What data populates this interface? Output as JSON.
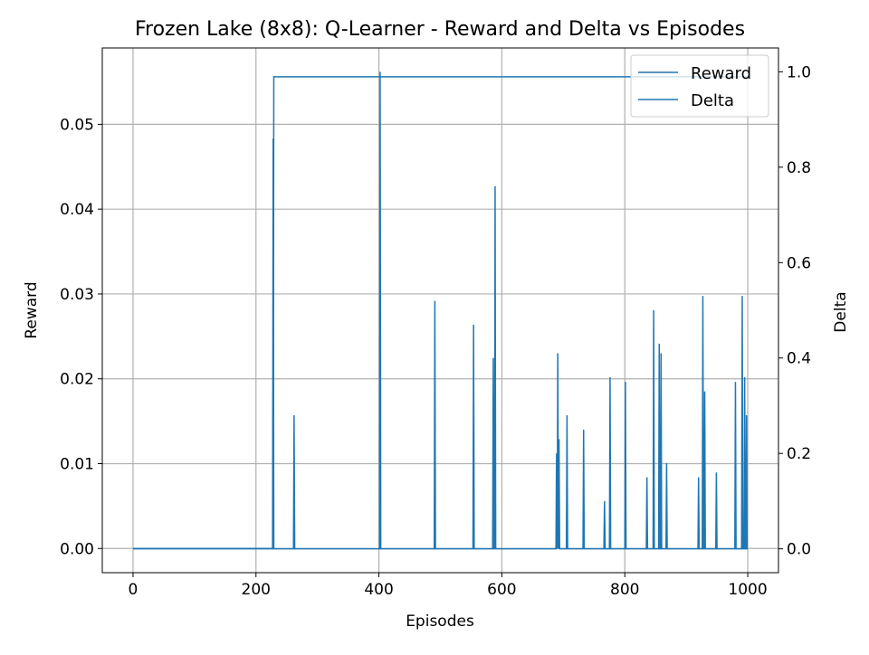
{
  "chart_data": {
    "type": "line",
    "title": "Frozen Lake (8x8): Q-Learner - Reward and Delta vs Episodes",
    "xlabel": "Episodes",
    "ylabel": "Reward",
    "y2label": "Delta",
    "xlim": [
      -50,
      1050
    ],
    "ylim": [
      -0.00285,
      0.059
    ],
    "y2lim": [
      -0.05,
      1.05
    ],
    "xticks": [
      0,
      200,
      400,
      600,
      800,
      1000
    ],
    "yticks": [
      0.0,
      0.01,
      0.02,
      0.03,
      0.04,
      0.05
    ],
    "ytick_labels": [
      "0.00",
      "0.01",
      "0.02",
      "0.03",
      "0.04",
      "0.05"
    ],
    "y2ticks": [
      0.0,
      0.2,
      0.4,
      0.6,
      0.8,
      1.0
    ],
    "y2tick_labels": [
      "0.0",
      "0.2",
      "0.4",
      "0.6",
      "0.8",
      "1.0"
    ],
    "grid": true,
    "legend_position": "top-right",
    "series": [
      {
        "name": "Reward",
        "axis": "left",
        "color": "#1f77b4",
        "points": [
          [
            0,
            0
          ],
          [
            228,
            0
          ],
          [
            229,
            0.0556
          ],
          [
            1000,
            0.0556
          ]
        ]
      },
      {
        "name": "Delta",
        "axis": "right",
        "color": "#1f77b4",
        "spikes": [
          [
            228,
            0.86
          ],
          [
            262,
            0.28
          ],
          [
            402,
            1.0
          ],
          [
            491,
            0.52
          ],
          [
            554,
            0.47
          ],
          [
            586,
            0.4
          ],
          [
            589,
            0.76
          ],
          [
            689,
            0.2
          ],
          [
            691,
            0.41
          ],
          [
            693,
            0.23
          ],
          [
            706,
            0.28
          ],
          [
            733,
            0.25
          ],
          [
            767,
            0.1
          ],
          [
            776,
            0.36
          ],
          [
            801,
            0.35
          ],
          [
            836,
            0.15
          ],
          [
            847,
            0.5
          ],
          [
            856,
            0.43
          ],
          [
            859,
            0.41
          ],
          [
            868,
            0.18
          ],
          [
            920,
            0.15
          ],
          [
            927,
            0.53
          ],
          [
            930,
            0.33
          ],
          [
            949,
            0.16
          ],
          [
            980,
            0.35
          ],
          [
            991,
            0.53
          ],
          [
            995,
            0.36
          ],
          [
            998,
            0.28
          ]
        ]
      }
    ]
  }
}
